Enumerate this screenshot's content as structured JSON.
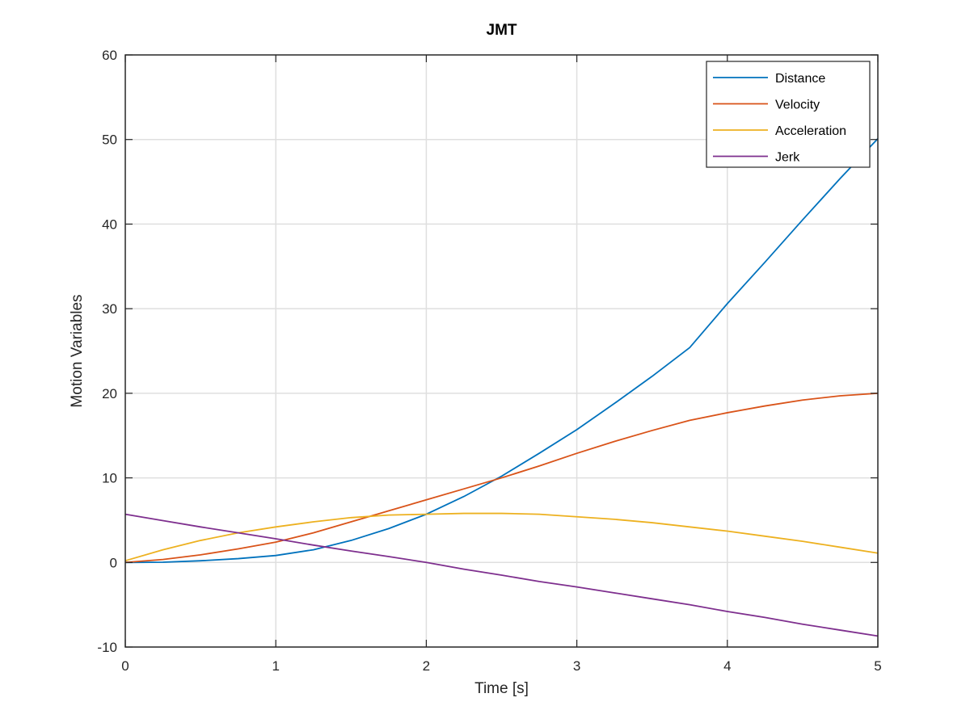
{
  "chart_data": {
    "type": "line",
    "title": "JMT",
    "xlabel": "Time [s]",
    "ylabel": "Motion Variables",
    "xlim": [
      0,
      5
    ],
    "ylim": [
      -10,
      60
    ],
    "xticks": [
      "0",
      "1",
      "2",
      "3",
      "4",
      "5"
    ],
    "yticks": [
      "-10",
      "0",
      "10",
      "20",
      "30",
      "40",
      "50",
      "60"
    ],
    "grid": true,
    "legend_position": "top-right",
    "x": [
      0,
      0.25,
      0.5,
      0.75,
      1,
      1.25,
      1.5,
      1.75,
      2,
      2.25,
      2.5,
      2.75,
      3,
      3.25,
      3.5,
      3.75,
      4,
      4.25,
      4.5,
      4.75,
      5
    ],
    "series": [
      {
        "name": "Distance",
        "color": "#0072BD",
        "values": [
          0,
          0.03,
          0.2,
          0.45,
          0.82,
          1.5,
          2.6,
          4.0,
          5.7,
          7.8,
          10.2,
          12.9,
          15.7,
          18.8,
          22.0,
          25.4,
          30.6,
          35.5,
          40.5,
          45.4,
          50.1
        ]
      },
      {
        "name": "Velocity",
        "color": "#D95319",
        "values": [
          0,
          0.35,
          0.9,
          1.6,
          2.4,
          3.5,
          4.8,
          6.1,
          7.4,
          8.7,
          10.0,
          11.4,
          12.9,
          14.3,
          15.6,
          16.8,
          17.7,
          18.5,
          19.2,
          19.7,
          20.0
        ]
      },
      {
        "name": "Acceleration",
        "color": "#EDB120",
        "values": [
          0.2,
          1.5,
          2.6,
          3.5,
          4.2,
          4.8,
          5.3,
          5.6,
          5.7,
          5.8,
          5.8,
          5.7,
          5.4,
          5.1,
          4.7,
          4.2,
          3.7,
          3.1,
          2.5,
          1.8,
          1.1
        ]
      },
      {
        "name": "Jerk",
        "color": "#7E2F8E",
        "values": [
          5.7,
          4.95,
          4.2,
          3.5,
          2.8,
          2.05,
          1.35,
          0.7,
          0,
          -0.8,
          -1.5,
          -2.25,
          -2.9,
          -3.6,
          -4.3,
          -5.0,
          -5.8,
          -6.5,
          -7.3,
          -8.0,
          -8.7
        ]
      }
    ]
  }
}
